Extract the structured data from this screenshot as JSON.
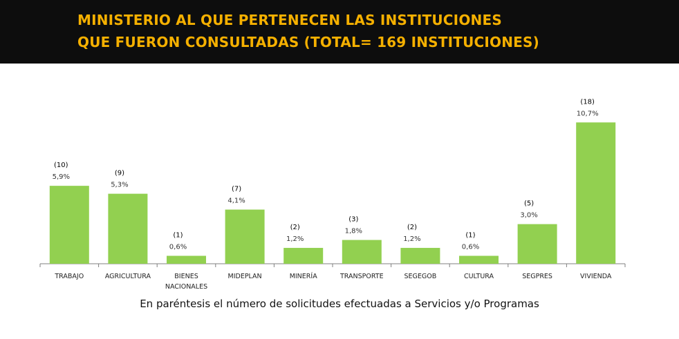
{
  "header": {
    "title_line1": "MINISTERIO AL QUE PERTENECEN LAS INSTITUCIONES",
    "title_line2": "QUE  FUERON CONSULTADAS (TOTAL= 169 INSTITUCIONES)"
  },
  "caption": "En paréntesis el número de solicitudes efectuadas a Servicios y/o Programas",
  "colors": {
    "header_bg": "#0d0d0d",
    "title": "#f5b000",
    "bar": "#92d050"
  },
  "chart_data": {
    "type": "bar",
    "categories": [
      [
        "TRABAJO"
      ],
      [
        "AGRICULTURA"
      ],
      [
        "BIENES",
        "NACIONALES"
      ],
      [
        "MIDEPLAN"
      ],
      [
        "MINERÍA"
      ],
      [
        "TRANSPORTE"
      ],
      [
        "SEGEGOB"
      ],
      [
        "CULTURA"
      ],
      [
        "SEGPRES"
      ],
      [
        "VIVIENDA"
      ]
    ],
    "values": [
      5.9,
      5.3,
      0.6,
      4.1,
      1.2,
      1.8,
      1.2,
      0.6,
      3.0,
      10.7
    ],
    "value_labels": [
      "5,9%",
      "5,3%",
      "0,6%",
      "4,1%",
      "1,2%",
      "1,8%",
      "1,2%",
      "0,6%",
      "3,0%",
      "10,7%"
    ],
    "counts": [
      "(10)",
      "(9)",
      "(1)",
      "(7)",
      "(2)",
      "(3)",
      "(2)",
      "(1)",
      "(5)",
      "(18)"
    ],
    "ylim": [
      0,
      11.5
    ],
    "grid": false,
    "legend": "none"
  }
}
